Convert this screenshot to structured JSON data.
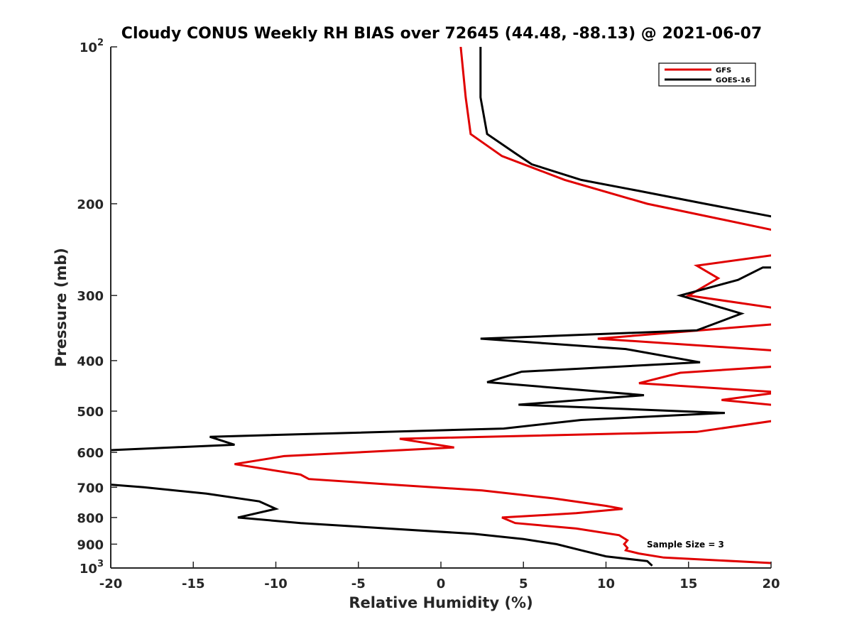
{
  "chart_data": {
    "type": "line",
    "title": "Cloudy CONUS Weekly RH BIAS over 72645 (44.48, -88.13) @ 2021-06-07",
    "xlabel": "Relative Humidity (%)",
    "ylabel": "Pressure (mb)",
    "xlim": [
      -20,
      20
    ],
    "ylim": [
      100,
      1000
    ],
    "y_scale": "log",
    "y_reversed": true,
    "grid": false,
    "legend_position": "top-right",
    "x_ticks": [
      "-20",
      "-15",
      "-10",
      "-5",
      "0",
      "5",
      "10",
      "15",
      "20"
    ],
    "x_tick_values": [
      -20,
      -15,
      -10,
      -5,
      0,
      5,
      10,
      15,
      20
    ],
    "y_ticks": [
      {
        "value": 100,
        "base": "10",
        "exp": "2"
      },
      {
        "value": 200,
        "label": "200"
      },
      {
        "value": 300,
        "label": "300"
      },
      {
        "value": 400,
        "label": "400"
      },
      {
        "value": 500,
        "label": "500"
      },
      {
        "value": 600,
        "label": "600"
      },
      {
        "value": 700,
        "label": "700"
      },
      {
        "value": 800,
        "label": "800"
      },
      {
        "value": 900,
        "label": "900"
      },
      {
        "value": 1000,
        "base": "10",
        "exp": "3"
      }
    ],
    "annotation": "Sample Size = 3",
    "series": [
      {
        "name": "GFS",
        "color": "#e00000",
        "points": [
          [
            1.2,
            100
          ],
          [
            1.5,
            125
          ],
          [
            1.8,
            147
          ],
          [
            3.7,
            162
          ],
          [
            7.5,
            180
          ],
          [
            12.5,
            200
          ],
          [
            20.5,
            226
          ],
          [
            20.5,
            250
          ],
          [
            15.5,
            263
          ],
          [
            16.8,
            278
          ],
          [
            15.0,
            300
          ],
          [
            20.5,
            318
          ],
          [
            20.5,
            340
          ],
          [
            9.5,
            363
          ],
          [
            20.5,
            383
          ],
          [
            20.5,
            410
          ],
          [
            14.5,
            422
          ],
          [
            12.0,
            442
          ],
          [
            20.5,
            460
          ],
          [
            17.0,
            476
          ],
          [
            20.5,
            488
          ],
          [
            20.5,
            520
          ],
          [
            15.5,
            548
          ],
          [
            -2.5,
            565
          ],
          [
            0.8,
            587
          ],
          [
            -9.5,
            610
          ],
          [
            -12.5,
            632
          ],
          [
            -8.5,
            662
          ],
          [
            -8.0,
            675
          ],
          [
            -3.5,
            690
          ],
          [
            2.5,
            710
          ],
          [
            6.8,
            735
          ],
          [
            10.0,
            760
          ],
          [
            11.0,
            770
          ],
          [
            8.2,
            785
          ],
          [
            3.7,
            800
          ],
          [
            4.5,
            820
          ],
          [
            8.2,
            840
          ],
          [
            10.8,
            865
          ],
          [
            11.3,
            885
          ],
          [
            11.1,
            900
          ],
          [
            11.3,
            915
          ],
          [
            11.2,
            925
          ],
          [
            12.0,
            938
          ],
          [
            13.5,
            955
          ],
          [
            20.5,
            980
          ]
        ]
      },
      {
        "name": "GOES-16",
        "color": "#000000",
        "points": [
          [
            2.4,
            100
          ],
          [
            2.4,
            125
          ],
          [
            2.8,
            147
          ],
          [
            4.5,
            160
          ],
          [
            5.5,
            168
          ],
          [
            8.5,
            180
          ],
          [
            12.0,
            189
          ],
          [
            16.0,
            200
          ],
          [
            20.5,
            213
          ],
          [
            20.5,
            265
          ],
          [
            19.5,
            265
          ],
          [
            18.0,
            280
          ],
          [
            14.5,
            300
          ],
          [
            18.2,
            325
          ],
          [
            15.5,
            350
          ],
          [
            2.4,
            363
          ],
          [
            11.2,
            380
          ],
          [
            15.7,
            403
          ],
          [
            4.9,
            420
          ],
          [
            2.8,
            440
          ],
          [
            12.3,
            466
          ],
          [
            4.7,
            486
          ],
          [
            17.2,
            504
          ],
          [
            8.5,
            520
          ],
          [
            3.8,
            540
          ],
          [
            -14.0,
            560
          ],
          [
            -12.5,
            580
          ],
          [
            -20.5,
            595
          ],
          [
            -20.5,
            690
          ],
          [
            -18.0,
            700
          ],
          [
            -14.2,
            720
          ],
          [
            -11.0,
            745
          ],
          [
            -10.0,
            770
          ],
          [
            -12.3,
            800
          ],
          [
            -8.5,
            820
          ],
          [
            2.0,
            860
          ],
          [
            5.0,
            880
          ],
          [
            7.0,
            900
          ],
          [
            8.5,
            925
          ],
          [
            10.0,
            950
          ],
          [
            12.5,
            970
          ],
          [
            12.8,
            990
          ]
        ]
      }
    ]
  }
}
